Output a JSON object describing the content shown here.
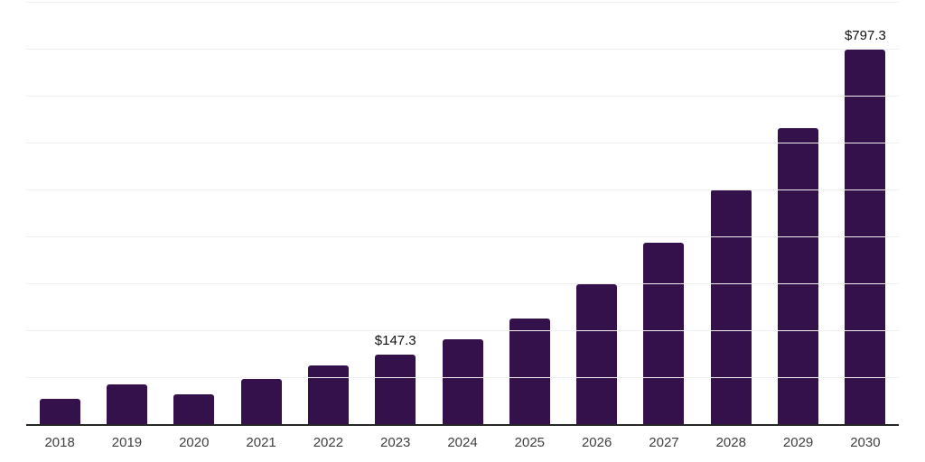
{
  "chart_data": {
    "type": "bar",
    "categories": [
      "2018",
      "2019",
      "2020",
      "2021",
      "2022",
      "2023",
      "2024",
      "2025",
      "2026",
      "2027",
      "2028",
      "2029",
      "2030"
    ],
    "values": [
      54,
      85,
      63,
      96,
      125,
      147.3,
      181,
      226,
      298,
      386,
      500,
      631,
      797.3
    ],
    "value_labels": {
      "2023": "$147.3",
      "2030": "$797.3"
    },
    "title": "",
    "xlabel": "",
    "ylabel": "",
    "ylim": [
      0,
      900
    ],
    "gridline_step": 100,
    "grid": true,
    "legend": false,
    "colors": {
      "bar": "#35114B",
      "axis": "#262626",
      "gridline": "#f0f0f0",
      "tick_label": "#3f3f3f",
      "value_label": "#111111",
      "background": "#ffffff"
    }
  }
}
